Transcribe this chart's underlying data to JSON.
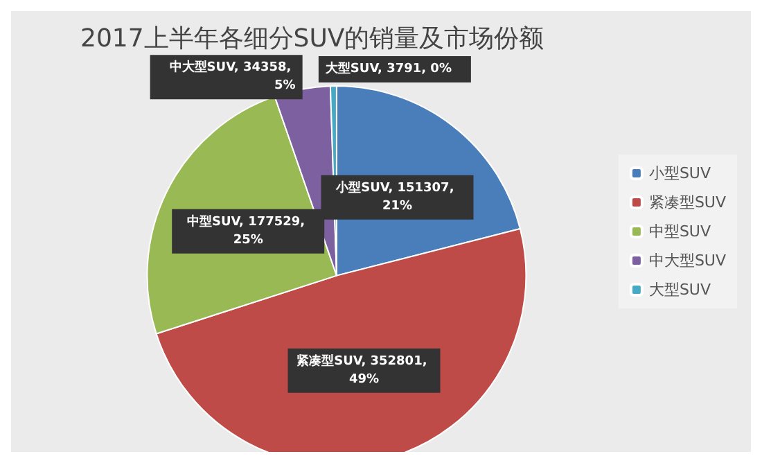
{
  "chart_data": {
    "type": "pie",
    "title": "2017上半年各细分SUV的销量及市场份额",
    "categories": [
      "小型SUV",
      "紧凑型SUV",
      "中型SUV",
      "中大型SUV",
      "大型SUV"
    ],
    "values": [
      151307,
      352801,
      177529,
      34358,
      3791
    ],
    "colors": [
      "#4a7ebb",
      "#be4b48",
      "#98b954",
      "#7d60a0",
      "#46aac5"
    ],
    "value_labels": [
      "小型SUV, 151307, 21%",
      "紧凑型SUV, 352801, 49%",
      "中型SUV, 177529, 25%",
      "中大型SUV, 34358, 5%",
      "大型SUV, 3791, 0%"
    ],
    "legend": "right"
  }
}
